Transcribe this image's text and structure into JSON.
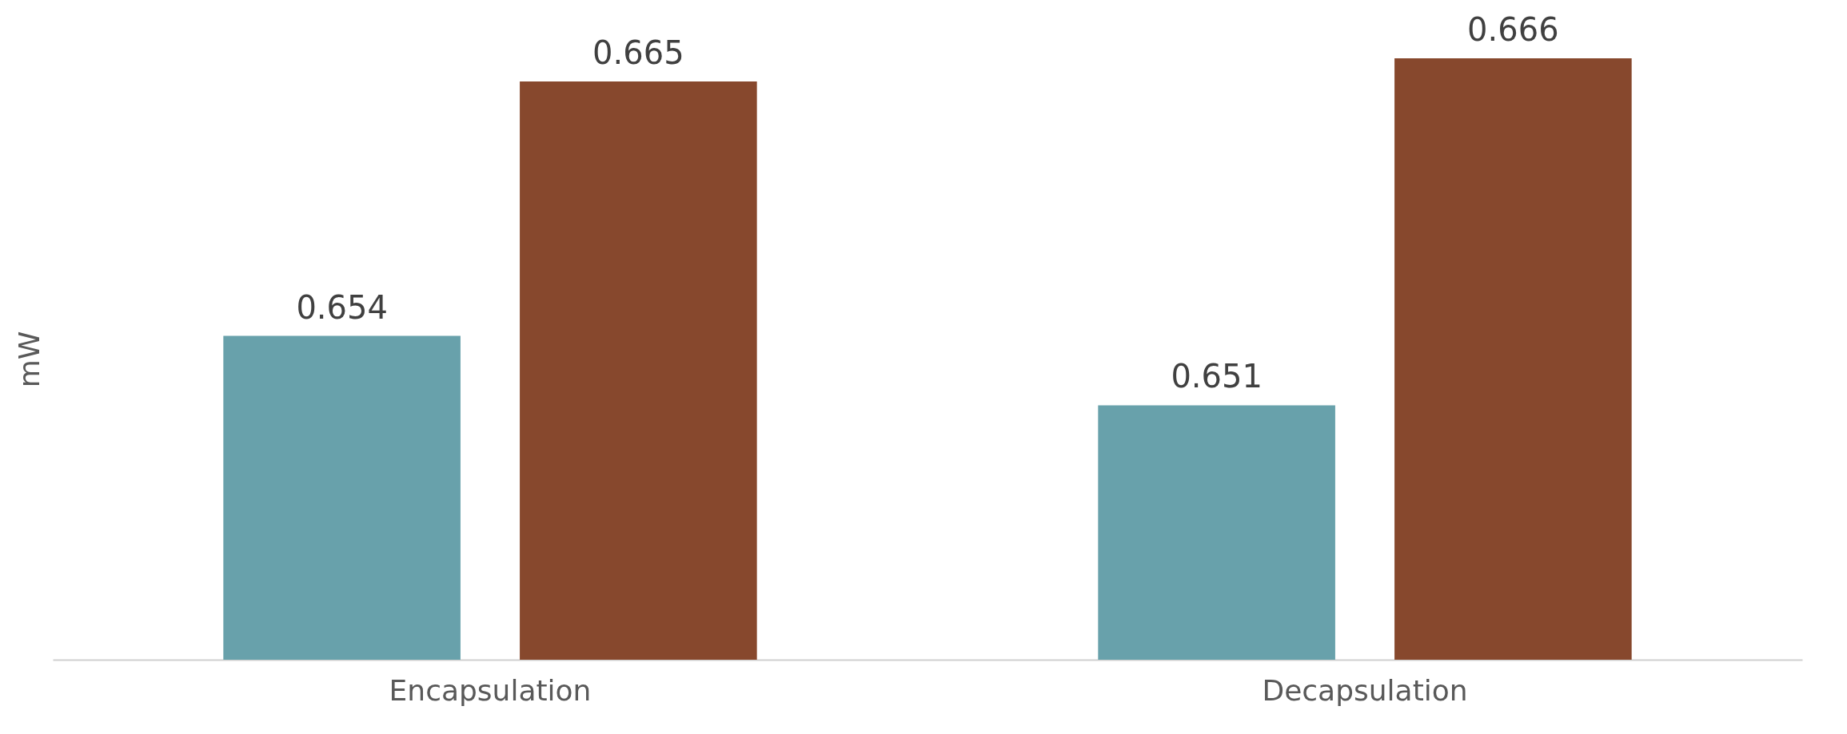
{
  "chart_data": {
    "type": "bar",
    "ylabel": "mW",
    "categories": [
      "Encapsulation",
      "Decapsulation"
    ],
    "series": [
      {
        "color": "#68a1ab",
        "values": [
          0.654,
          0.651
        ]
      },
      {
        "color": "#87482d",
        "values": [
          0.665,
          0.666
        ]
      }
    ],
    "ylim": [
      0.64,
      0.666
    ],
    "data_labels": true,
    "tick_labels": "x"
  }
}
